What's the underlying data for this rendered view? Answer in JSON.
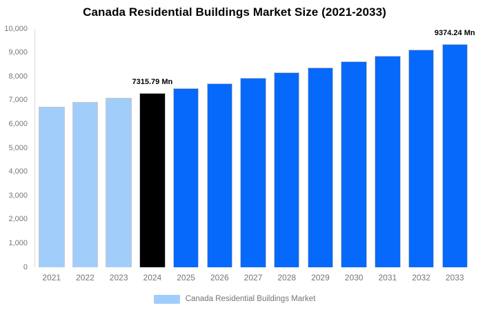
{
  "chart_data": {
    "type": "bar",
    "title": "Canada Residential Buildings Market Size (2021-2033)",
    "categories": [
      "2021",
      "2022",
      "2023",
      "2024",
      "2025",
      "2026",
      "2027",
      "2028",
      "2029",
      "2030",
      "2031",
      "2032",
      "2033"
    ],
    "values": [
      6730,
      6925,
      7115,
      7315.79,
      7520,
      7730,
      7945,
      8165,
      8395,
      8630,
      8870,
      9120,
      9374.24
    ],
    "unit": "Mn",
    "xlabel": "",
    "ylabel": "",
    "ylim": [
      0,
      10000
    ],
    "ytick_step": 1000,
    "grid": false,
    "bar_roles": [
      "historical",
      "historical",
      "historical",
      "base_year",
      "forecast",
      "forecast",
      "forecast",
      "forecast",
      "forecast",
      "forecast",
      "forecast",
      "forecast",
      "forecast"
    ],
    "annotations": [
      {
        "index": 3,
        "text": "7315.79 Mn"
      },
      {
        "index": 12,
        "text": "9374.24 Mn"
      }
    ],
    "legend": {
      "label": "Canada Residential Buildings Market",
      "position": "bottom"
    },
    "colors": {
      "historical": "#a1cdfa",
      "base_year": "#000000",
      "forecast": "#0669fb",
      "axis_text": "#757575",
      "axis_line": "#d9d9d9",
      "title_text": "#000000"
    }
  }
}
